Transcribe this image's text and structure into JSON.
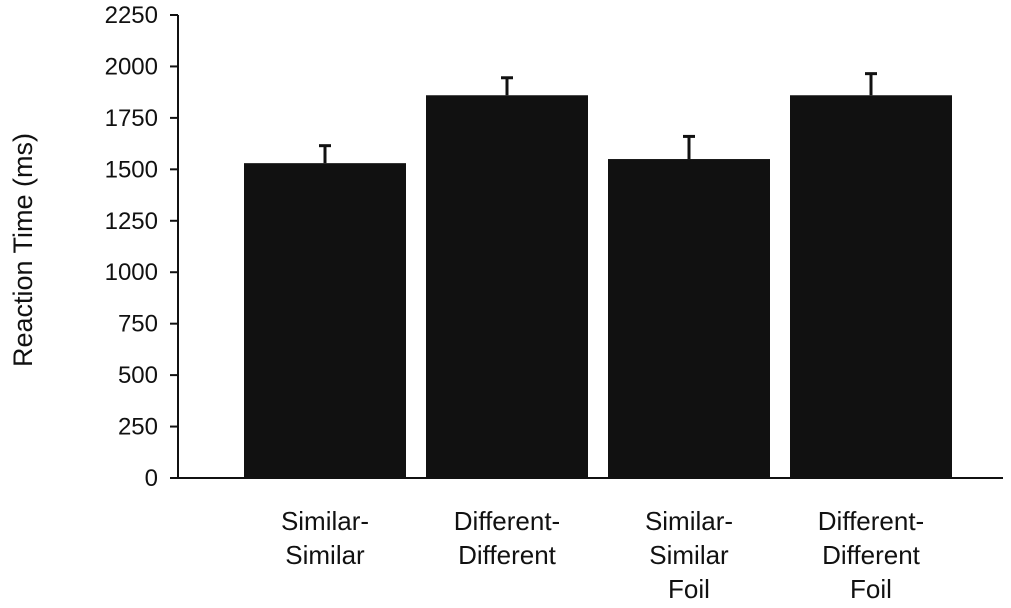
{
  "chart_data": {
    "type": "bar",
    "title": "",
    "xlabel": "",
    "ylabel": "Reaction Time (ms)",
    "ylim": [
      0,
      2250
    ],
    "yticks": [
      "0",
      "250",
      "500",
      "750",
      "1000",
      "1250",
      "1500",
      "1750",
      "2000",
      "2250"
    ],
    "categories": [
      [
        "Similar-",
        "Similar"
      ],
      [
        "Different-",
        "Different"
      ],
      [
        "Similar-",
        "Similar",
        "Foil"
      ],
      [
        "Different-",
        "Different",
        "Foil"
      ]
    ],
    "values": [
      1530,
      1860,
      1550,
      1860
    ],
    "error_bars": [
      85,
      85,
      110,
      105
    ],
    "bar_color": "#111111",
    "grid": false,
    "legend": "none"
  }
}
